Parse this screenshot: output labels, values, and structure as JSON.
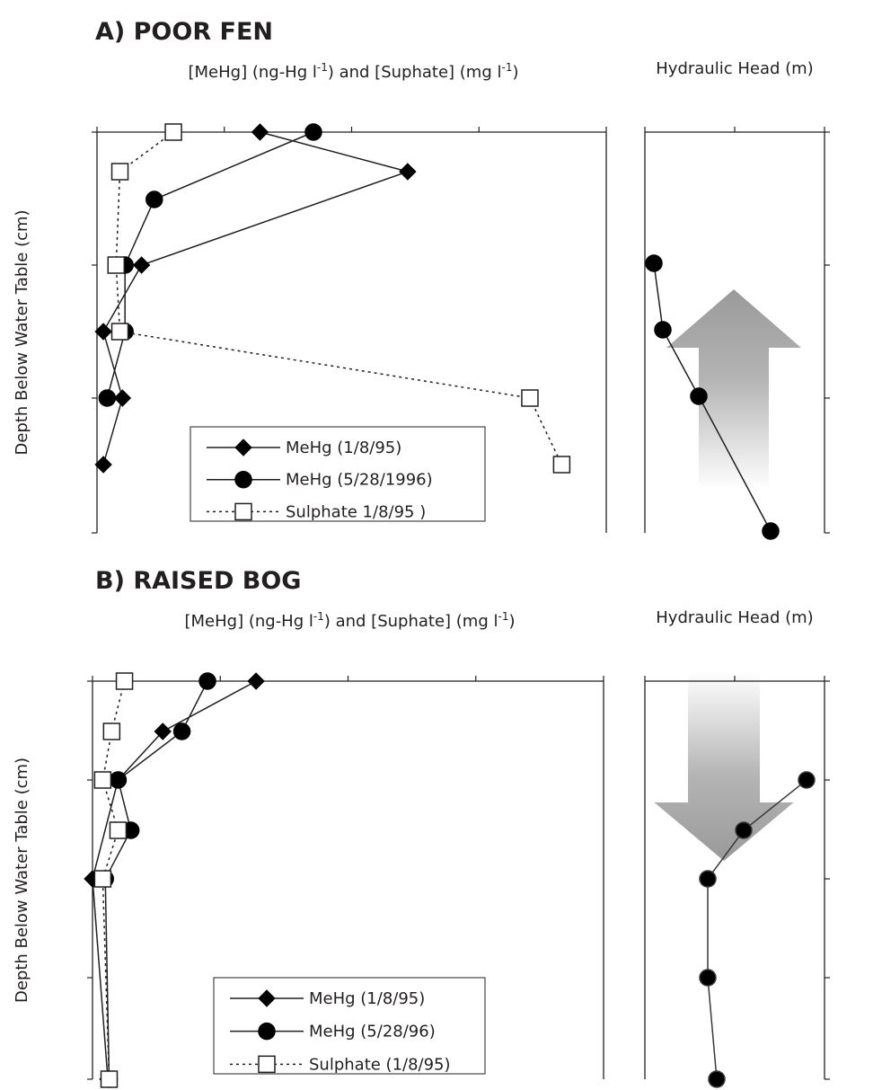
{
  "figure": {
    "panel_a_title": "A) POOR FEN",
    "panel_b_title": "B) RAISED BOG"
  },
  "chart_data": [
    {
      "id": "a_conc",
      "type": "line",
      "title": "",
      "xlabel": "[MeHg] (ng-Hg l⁻¹) and [Suphate] (mg l⁻¹)",
      "xlabel_parts": {
        "pre": "[MeHg] (ng-Hg l",
        "sup1": "-1",
        "mid": ") and [Suphate] (mg l",
        "sup2": "-1",
        "post": ")"
      },
      "ylabel": "Depth Below Water Table (cm)",
      "xlim": [
        0,
        4
      ],
      "x_ticks": [
        "0",
        "1",
        "2",
        "3",
        "4"
      ],
      "ylim": [
        -150,
        0
      ],
      "y_ticks": [
        "0",
        "-5",
        "-100",
        "-150"
      ],
      "series": [
        {
          "name": "MeHg (1/8/95)",
          "marker": "diamond",
          "dash": "solid",
          "x": [
            1.28,
            2.44,
            0.35,
            0.05,
            0.2,
            0.05
          ],
          "y": [
            0,
            -15,
            -50,
            -75,
            -100,
            -125
          ]
        },
        {
          "name": "MeHg (5/28/1996)",
          "marker": "circle",
          "dash": "solid",
          "x": [
            1.7,
            0.45,
            0.22,
            0.22,
            0.08
          ],
          "y": [
            0,
            -25,
            -50,
            -75,
            -100
          ]
        },
        {
          "name": "Sulphate 1/8/95 )",
          "marker": "square",
          "dash": "dotted",
          "x": [
            0.6,
            0.18,
            0.15,
            0.18,
            3.4,
            3.65
          ],
          "y": [
            0,
            -15,
            -50,
            -75,
            -100,
            -125
          ]
        }
      ],
      "legend": "bottom-center"
    },
    {
      "id": "a_head",
      "type": "line",
      "title": "",
      "xlabel": "Hydraulic Head (m)",
      "xlim": [
        8.2,
        8.4
      ],
      "x_ticks": [
        "8.2",
        "8.3",
        "8.4"
      ],
      "ylim": [
        -150,
        0
      ],
      "y_ticks": [
        "0",
        "-50",
        "-100",
        "-150"
      ],
      "series": [
        {
          "name": "",
          "marker": "circle",
          "dash": "solid",
          "x": [
            8.21,
            8.22,
            8.26,
            8.34
          ],
          "y": [
            -50,
            -75,
            -100,
            -150
          ]
        }
      ],
      "flow_arrow": "upward"
    },
    {
      "id": "b_conc",
      "type": "line",
      "title": "",
      "xlabel": "[MeHg] (ng-Hg l⁻¹) and [Suphate] (mg l⁻¹)",
      "xlabel_parts": {
        "pre": "[MeHg] (ng-Hg l",
        "sup1": "-1",
        "mid": ") and [Suphate] (mg l",
        "sup2": "-1",
        "post": ")"
      },
      "ylabel": "Depth Below Water Table (cm)",
      "xlim": [
        0,
        4
      ],
      "x_ticks": [
        "0",
        "1",
        "2",
        "3",
        "4"
      ],
      "ylim": [
        -200,
        0
      ],
      "y_ticks": [
        "0",
        "-5",
        "-100",
        "-150",
        "-200"
      ],
      "series": [
        {
          "name": "MeHg (1/8/95)",
          "marker": "diamond",
          "dash": "solid",
          "x": [
            1.28,
            0.55,
            0.2,
            0.0,
            0.12
          ],
          "y": [
            0,
            -25,
            -50,
            -100,
            -200
          ]
        },
        {
          "name": "MeHg (5/28/96)",
          "marker": "circle",
          "dash": "solid",
          "x": [
            0.9,
            0.7,
            0.2,
            0.3,
            0.1,
            0.13
          ],
          "y": [
            0,
            -25,
            -50,
            -75,
            -100,
            -200
          ]
        },
        {
          "name": "Sulphate (1/8/95)",
          "marker": "square",
          "dash": "dotted",
          "x": [
            0.25,
            0.15,
            0.08,
            0.2,
            0.08,
            0.13
          ],
          "y": [
            0,
            -25,
            -50,
            -75,
            -100,
            -200
          ]
        }
      ],
      "legend": "bottom-center"
    },
    {
      "id": "b_head",
      "type": "line",
      "title": "",
      "xlabel": "Hydraulic Head (m)",
      "xlim": [
        8.1,
        8.3
      ],
      "x_ticks": [
        "8.1",
        "8.2",
        "8.3"
      ],
      "ylim": [
        -200,
        0
      ],
      "y_ticks": [
        "0",
        "-5",
        "-100",
        "-150",
        "-200"
      ],
      "series": [
        {
          "name": "",
          "marker": "circle",
          "dash": "solid",
          "x": [
            8.28,
            8.21,
            8.17,
            8.17,
            8.18
          ],
          "y": [
            -50,
            -75,
            -100,
            -150,
            -200
          ]
        }
      ],
      "flow_arrow": "downward"
    }
  ]
}
